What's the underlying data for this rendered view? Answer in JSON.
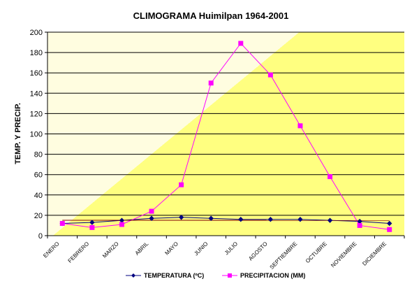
{
  "chart_data": {
    "type": "line",
    "title": "CLIMOGRAMA Huimilpan 1964-2001",
    "xlabel": "",
    "ylabel": "TEMP. Y PRECIP.",
    "ylim": [
      0,
      200
    ],
    "yticks": [
      0,
      20,
      40,
      60,
      80,
      100,
      120,
      140,
      160,
      180,
      200
    ],
    "grid": true,
    "legend_position": "bottom",
    "categories": [
      "ENERO",
      "FEBRERO",
      "MARZO",
      "ABRIL",
      "MAYO",
      "JUNIO",
      "JULIO",
      "AGOSTO",
      "SEPTIEMBRE",
      "OCTUBRE",
      "NOVIEMBRE",
      "DICIEMBRE"
    ],
    "series": [
      {
        "name": "TEMPERATURA (ºC)",
        "color": "#000080",
        "marker": "diamond",
        "values": [
          12,
          13,
          15,
          17,
          18,
          17,
          16,
          16,
          16,
          15,
          14,
          12
        ]
      },
      {
        "name": "PRECIPITACION (MM)",
        "color": "#ff00ff",
        "marker": "square",
        "values": [
          12,
          8,
          11,
          24,
          50,
          150,
          189,
          158,
          108,
          58,
          10,
          6
        ]
      }
    ],
    "colors": {
      "plot_background_light": "#fffde0",
      "plot_background_yellow": "#ffff80",
      "gridline": "#000000",
      "trend_line": "#800000"
    }
  }
}
